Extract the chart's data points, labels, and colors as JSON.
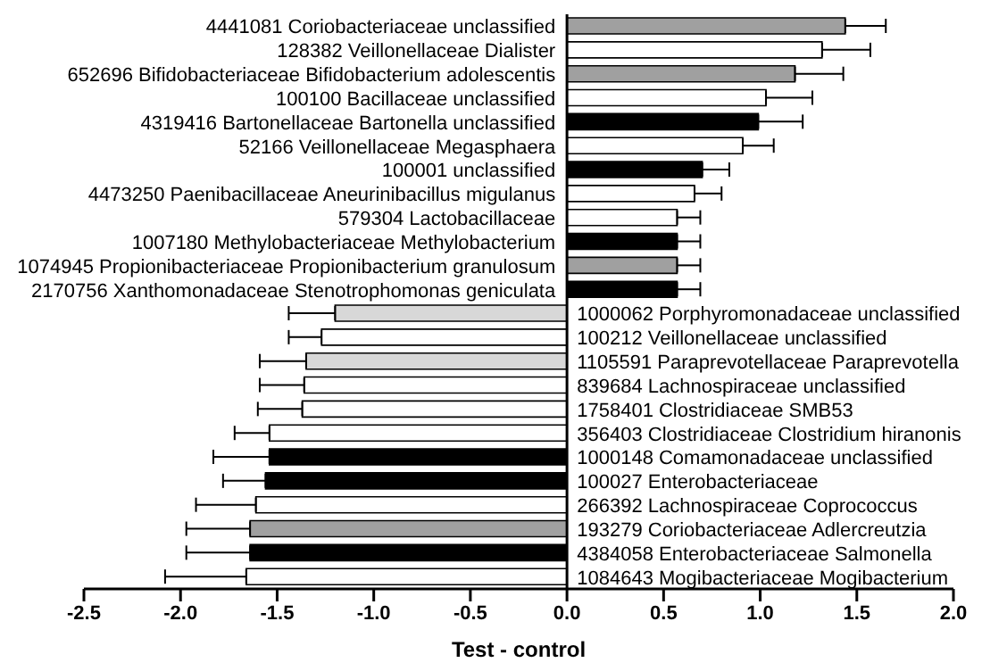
{
  "chart_data": {
    "type": "bar",
    "orientation": "horizontal",
    "xlabel": "Test - control",
    "categories": [
      "4441081 Coriobacteriaceae unclassified",
      "128382 Veillonellaceae Dialister",
      "652696 Bifidobacteriaceae Bifidobacterium adolescentis",
      "100100 Bacillaceae unclassified",
      "4319416 Bartonellaceae Bartonella unclassified",
      "52166 Veillonellaceae Megasphaera",
      "100001 unclassified",
      "4473250 Paenibacillaceae Aneurinibacillus migulanus",
      "579304 Lactobacillaceae",
      "1007180 Methylobacteriaceae Methylobacterium",
      "1074945 Propionibacteriaceae Propionibacterium granulosum",
      "2170756 Xanthomonadaceae Stenotrophomonas geniculata",
      "1000062 Porphyromonadaceae unclassified",
      "100212 Veillonellaceae unclassified",
      "1105591 Paraprevotellaceae Paraprevotella",
      "839684 Lachnospiraceae unclassified",
      "1758401 Clostridiaceae SMB53",
      "356403 Clostridiaceae Clostridium hiranonis",
      "1000148 Comamonadaceae unclassified",
      "100027 Enterobacteriaceae",
      "266392 Lachnospiraceae Coprococcus",
      "193279 Coriobacteriaceae Adlercreutzia",
      "4384058 Enterobacteriaceae Salmonella",
      "1084643 Mogibacteriaceae Mogibacterium"
    ],
    "values": [
      1.44,
      1.32,
      1.18,
      1.03,
      0.99,
      0.91,
      0.7,
      0.66,
      0.57,
      0.57,
      0.57,
      0.57,
      -1.2,
      -1.27,
      -1.35,
      -1.36,
      -1.37,
      -1.54,
      -1.54,
      -1.56,
      -1.61,
      -1.64,
      -1.64,
      -1.66
    ],
    "errors": [
      0.21,
      0.25,
      0.25,
      0.24,
      0.23,
      0.16,
      0.14,
      0.14,
      0.12,
      0.12,
      0.12,
      0.12,
      0.24,
      0.17,
      0.24,
      0.23,
      0.23,
      0.18,
      0.29,
      0.22,
      0.31,
      0.33,
      0.33,
      0.42
    ],
    "colors": [
      "#a0a0a0",
      "#ffffff",
      "#a0a0a0",
      "#ffffff",
      "#000000",
      "#ffffff",
      "#000000",
      "#ffffff",
      "#ffffff",
      "#000000",
      "#a0a0a0",
      "#000000",
      "#d8d8d8",
      "#ffffff",
      "#d8d8d8",
      "#ffffff",
      "#ffffff",
      "#ffffff",
      "#000000",
      "#000000",
      "#ffffff",
      "#a0a0a0",
      "#000000",
      "#ffffff"
    ],
    "xlim": [
      -2.5,
      2.0
    ],
    "xticks": [
      {
        "value": -2.5,
        "label": "-2.5"
      },
      {
        "value": -2,
        "label": "-2.0"
      },
      {
        "value": -1.5,
        "label": "-1.5"
      },
      {
        "value": -1,
        "label": "-1.0"
      },
      {
        "value": -0.5,
        "label": "-0.5"
      },
      {
        "value": 0,
        "label": "0.0"
      },
      {
        "value": 0.5,
        "label": "0.5"
      },
      {
        "value": 1,
        "label": "1.0"
      },
      {
        "value": 1.5,
        "label": "1.5"
      },
      {
        "value": 2,
        "label": "2.0"
      }
    ],
    "grid": false,
    "legend": false
  }
}
